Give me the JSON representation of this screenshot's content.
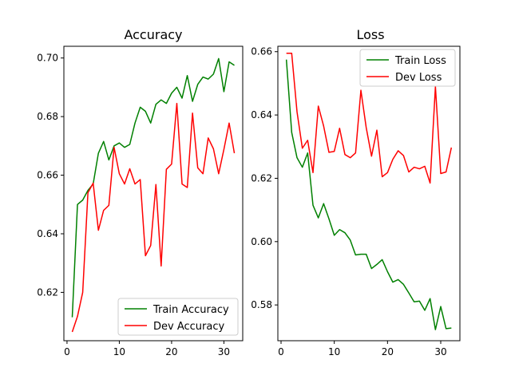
{
  "chart_data": [
    {
      "type": "line",
      "title": "Accuracy",
      "xlabel": "",
      "ylabel": "",
      "xlim": [
        -0.6,
        33.6
      ],
      "ylim": [
        0.6035,
        0.704
      ],
      "xticks": [
        0,
        10,
        20,
        30
      ],
      "yticks": [
        0.62,
        0.64,
        0.66,
        0.68,
        0.7
      ],
      "ytick_labels": [
        "0.62",
        "0.64",
        "0.66",
        "0.68",
        "0.70"
      ],
      "legend_position": "lower-right",
      "grid": false,
      "x": [
        1,
        2,
        3,
        4,
        5,
        6,
        7,
        8,
        9,
        10,
        11,
        12,
        13,
        14,
        15,
        16,
        17,
        18,
        19,
        20,
        21,
        22,
        23,
        24,
        25,
        26,
        27,
        28,
        29,
        30,
        31,
        32
      ],
      "series": [
        {
          "name": "Train Accuracy",
          "color": "#008000",
          "values": [
            0.6115,
            0.65,
            0.6515,
            0.6548,
            0.657,
            0.6675,
            0.6715,
            0.6652,
            0.67,
            0.671,
            0.6695,
            0.6705,
            0.6778,
            0.6832,
            0.6818,
            0.6778,
            0.6842,
            0.6857,
            0.6845,
            0.688,
            0.69,
            0.6863,
            0.694,
            0.6852,
            0.691,
            0.6935,
            0.6928,
            0.6945,
            0.6998,
            0.6885,
            0.6987,
            0.6975
          ]
        },
        {
          "name": "Dev Accuracy",
          "color": "#ff0000",
          "values": [
            0.6065,
            0.6118,
            0.62,
            0.654,
            0.6573,
            0.6412,
            0.648,
            0.6497,
            0.6695,
            0.6605,
            0.657,
            0.6622,
            0.657,
            0.6585,
            0.6325,
            0.636,
            0.6568,
            0.629,
            0.662,
            0.6638,
            0.6845,
            0.657,
            0.6558,
            0.6812,
            0.6625,
            0.6605,
            0.6727,
            0.669,
            0.6605,
            0.6688,
            0.6778,
            0.6675
          ]
        }
      ]
    },
    {
      "type": "line",
      "title": "Loss",
      "xlabel": "",
      "ylabel": "",
      "xlim": [
        -0.6,
        33.6
      ],
      "ylim": [
        0.5687,
        0.6617
      ],
      "xticks": [
        0,
        10,
        20,
        30
      ],
      "yticks": [
        0.58,
        0.6,
        0.62,
        0.64,
        0.66
      ],
      "ytick_labels": [
        "0.58",
        "0.60",
        "0.62",
        "0.64",
        "0.66"
      ],
      "legend_position": "upper-right",
      "grid": false,
      "x": [
        1,
        2,
        3,
        4,
        5,
        6,
        7,
        8,
        9,
        10,
        11,
        12,
        13,
        14,
        15,
        16,
        17,
        18,
        19,
        20,
        21,
        22,
        23,
        24,
        25,
        26,
        27,
        28,
        29,
        30,
        31,
        32
      ],
      "series": [
        {
          "name": "Train Loss",
          "color": "#008000",
          "values": [
            0.6575,
            0.6345,
            0.6265,
            0.6235,
            0.628,
            0.6115,
            0.6075,
            0.612,
            0.6072,
            0.602,
            0.6038,
            0.6028,
            0.6005,
            0.5958,
            0.596,
            0.596,
            0.5915,
            0.5928,
            0.5943,
            0.5905,
            0.5872,
            0.588,
            0.5865,
            0.5838,
            0.581,
            0.5812,
            0.5783,
            0.582,
            0.5722,
            0.5795,
            0.5725,
            0.5727
          ]
        },
        {
          "name": "Dev Loss",
          "color": "#ff0000",
          "values": [
            0.6595,
            0.6595,
            0.641,
            0.6295,
            0.632,
            0.6218,
            0.6428,
            0.6365,
            0.6282,
            0.6285,
            0.6358,
            0.6275,
            0.6265,
            0.628,
            0.6478,
            0.636,
            0.627,
            0.6352,
            0.6205,
            0.6218,
            0.626,
            0.6287,
            0.6272,
            0.622,
            0.6235,
            0.623,
            0.6238,
            0.6185,
            0.649,
            0.6215,
            0.622,
            0.6297
          ]
        }
      ]
    }
  ]
}
